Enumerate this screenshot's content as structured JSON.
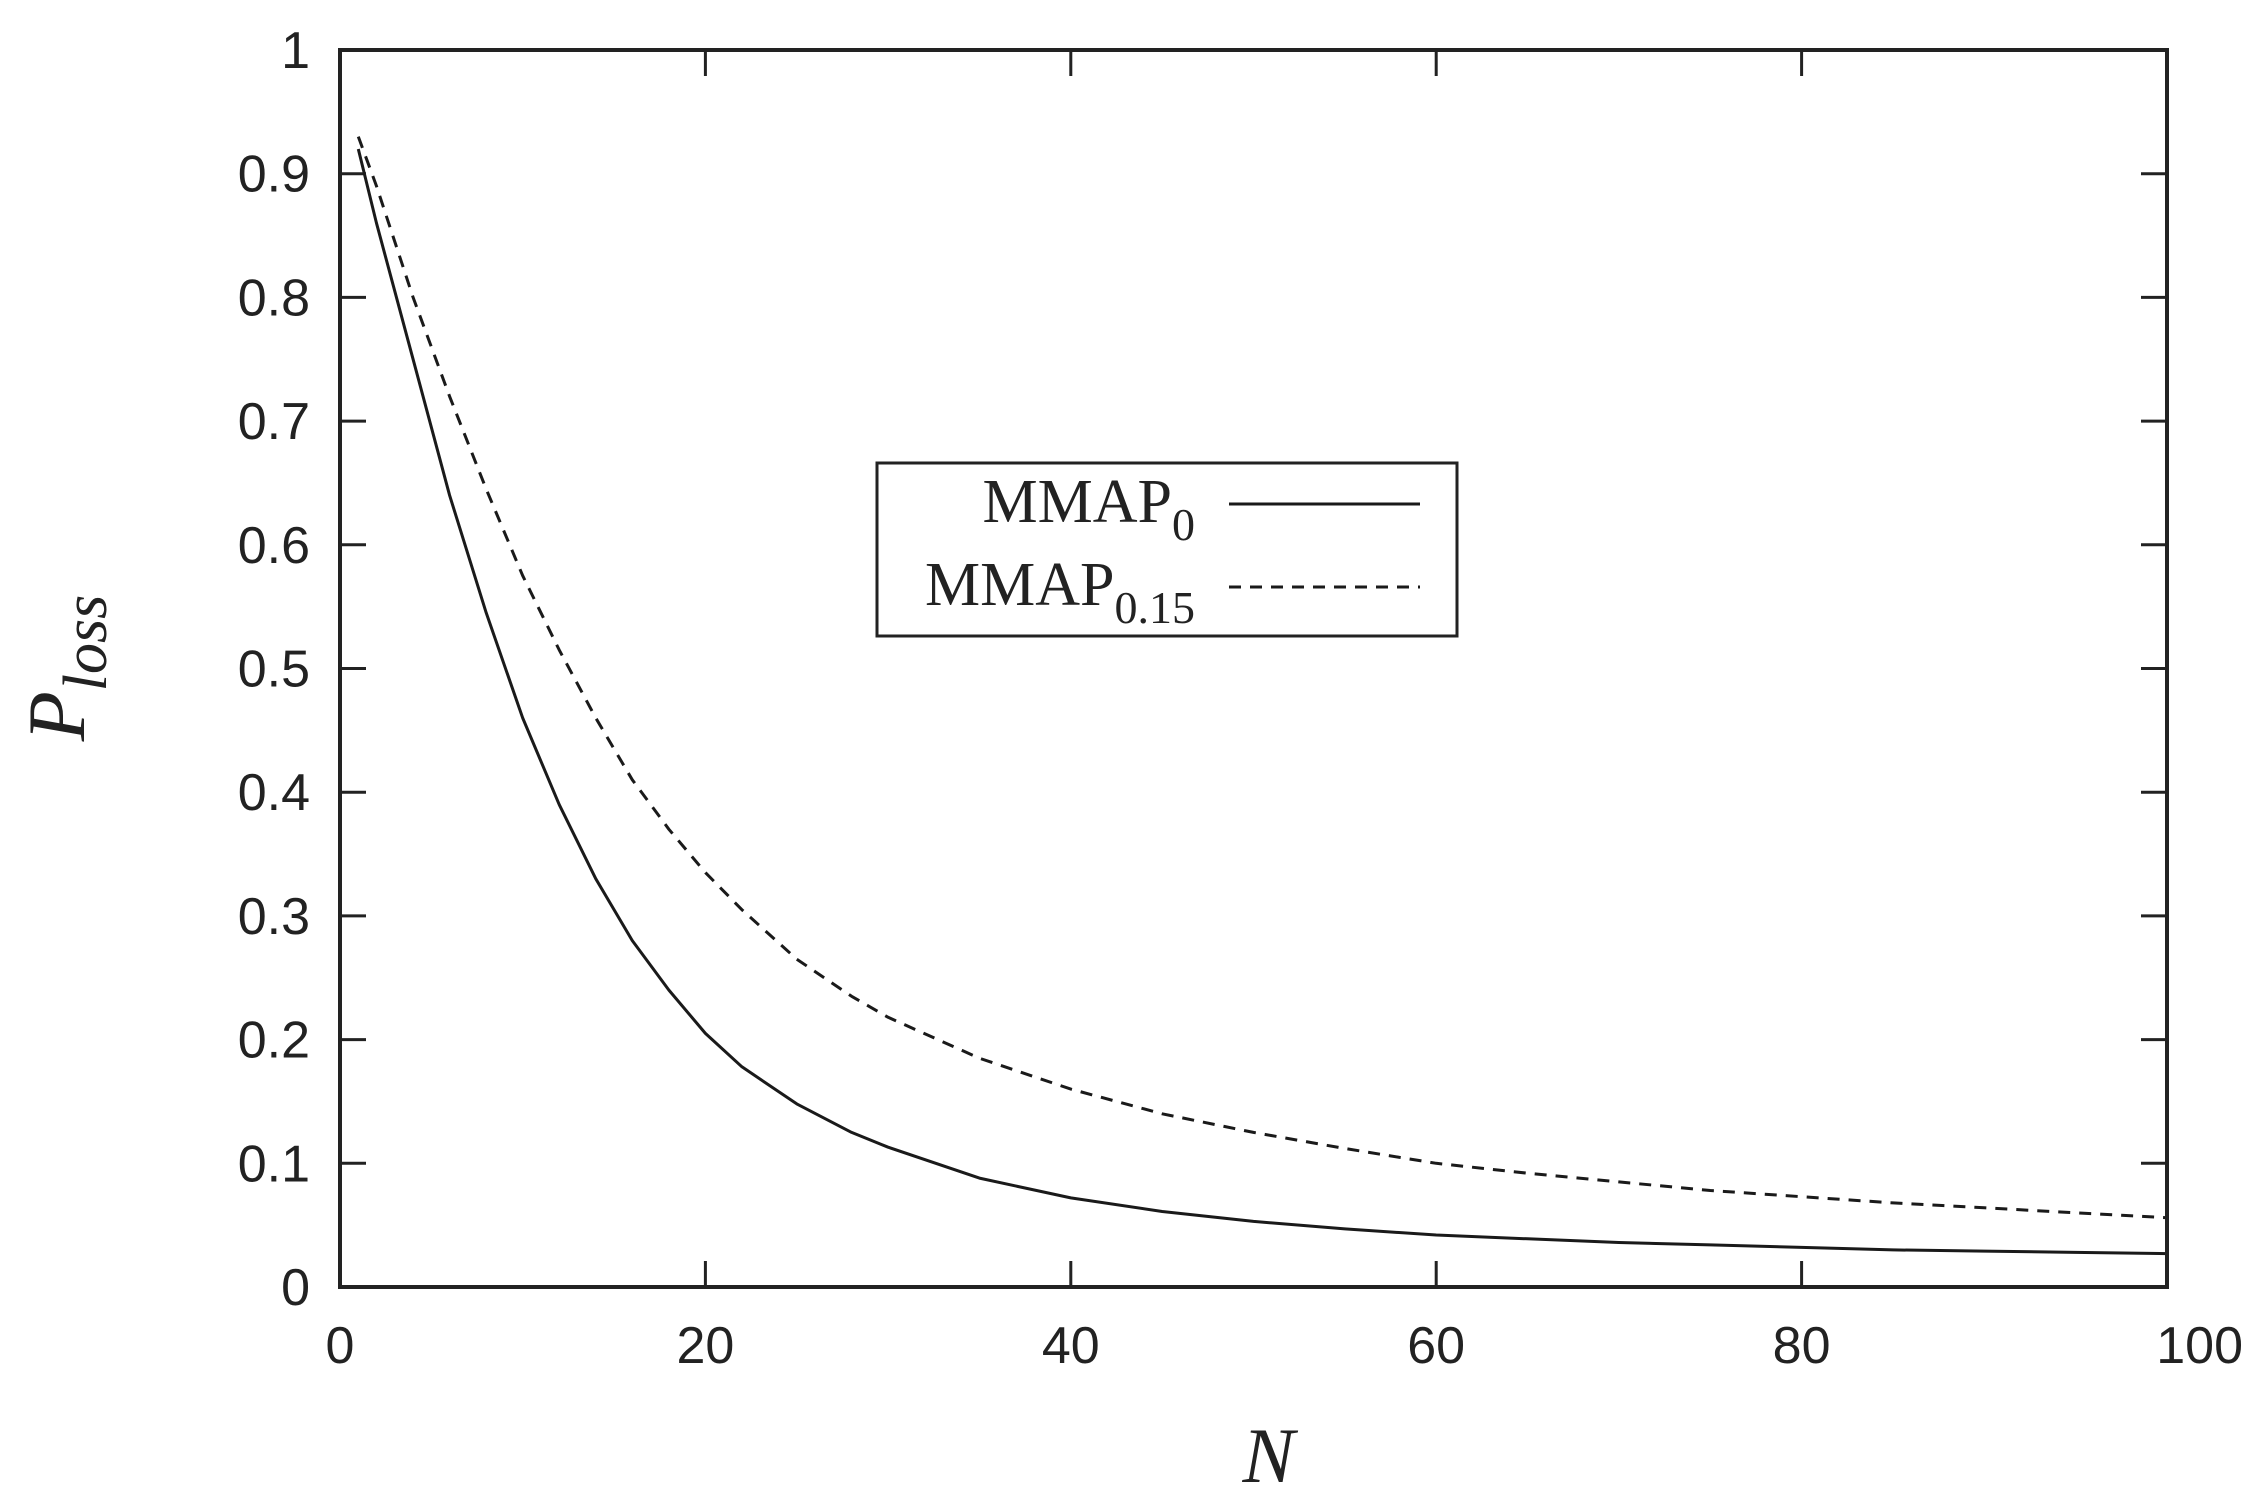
{
  "chart_data": {
    "type": "line",
    "title": "",
    "xlabel": "N",
    "ylabel": {
      "base": "P",
      "sub": "loss"
    },
    "xlim": [
      0,
      100
    ],
    "ylim": [
      0,
      1
    ],
    "xticks": [
      0,
      20,
      40,
      60,
      80,
      100
    ],
    "xtick_labels": [
      "0",
      "20",
      "40",
      "60",
      "80",
      "100"
    ],
    "yticks": [
      0,
      0.1,
      0.2,
      0.3,
      0.4,
      0.5,
      0.6,
      0.7,
      0.8,
      0.9,
      1
    ],
    "ytick_labels": [
      "0",
      "0.1",
      "0.2",
      "0.3",
      "0.4",
      "0.5",
      "0.6",
      "0.7",
      "0.8",
      "0.9",
      "1"
    ],
    "grid": false,
    "legend_position": "upper-center",
    "colors": {
      "line": "#1a1a1a",
      "axis": "#222222",
      "background": "#ffffff"
    },
    "series": [
      {
        "name": {
          "base": "MMAP",
          "sub": "0"
        },
        "style": "solid",
        "x": [
          1,
          2,
          4,
          6,
          8,
          10,
          12,
          14,
          16,
          18,
          20,
          22,
          25,
          28,
          30,
          35,
          40,
          45,
          50,
          55,
          60,
          65,
          70,
          75,
          80,
          85,
          90,
          95,
          100
        ],
        "y": [
          0.92,
          0.86,
          0.75,
          0.64,
          0.545,
          0.46,
          0.39,
          0.33,
          0.28,
          0.24,
          0.205,
          0.178,
          0.148,
          0.125,
          0.113,
          0.088,
          0.072,
          0.061,
          0.053,
          0.047,
          0.042,
          0.039,
          0.036,
          0.034,
          0.032,
          0.03,
          0.029,
          0.028,
          0.027
        ]
      },
      {
        "name": {
          "base": "MMAP",
          "sub": "0.15"
        },
        "style": "dashed",
        "x": [
          1,
          2,
          4,
          6,
          8,
          10,
          12,
          14,
          16,
          18,
          20,
          22,
          25,
          28,
          30,
          35,
          40,
          45,
          50,
          55,
          60,
          65,
          70,
          75,
          80,
          85,
          90,
          95,
          100
        ],
        "y": [
          0.93,
          0.89,
          0.8,
          0.72,
          0.645,
          0.575,
          0.515,
          0.46,
          0.41,
          0.37,
          0.335,
          0.305,
          0.265,
          0.235,
          0.218,
          0.185,
          0.16,
          0.14,
          0.125,
          0.112,
          0.1,
          0.092,
          0.085,
          0.078,
          0.073,
          0.068,
          0.064,
          0.06,
          0.056
        ]
      }
    ]
  }
}
